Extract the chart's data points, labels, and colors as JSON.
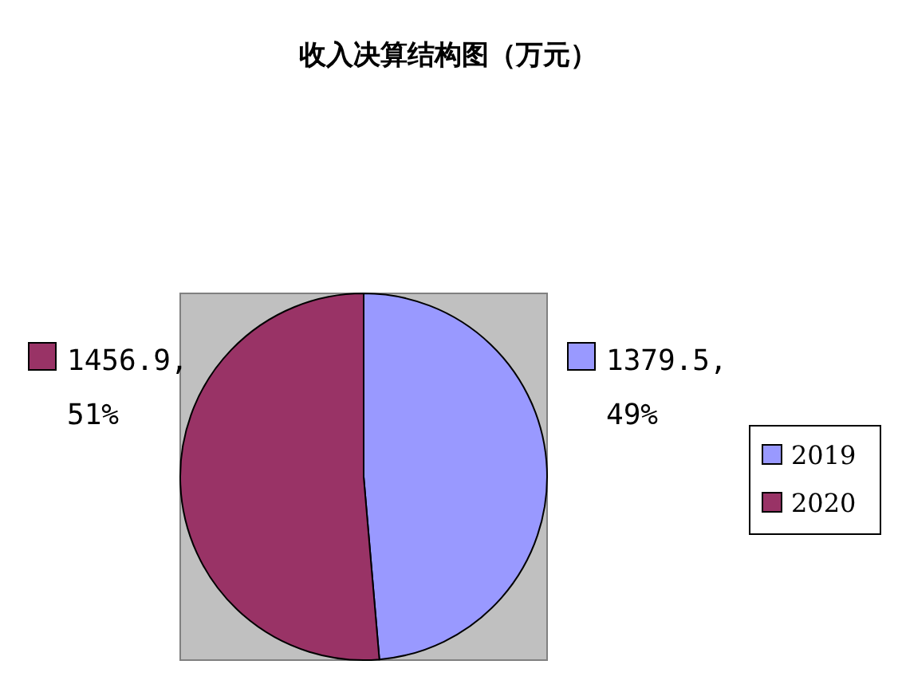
{
  "chart_data": {
    "type": "pie",
    "title": "收入决算结构图（万元）",
    "categories": [
      "2019",
      "2020"
    ],
    "values": [
      1379.5,
      1456.9
    ],
    "colors": [
      "#9999ff",
      "#993366"
    ],
    "value_labels": [
      "1379.5, 49%",
      "1456.9, 51%"
    ],
    "legend": "right"
  }
}
